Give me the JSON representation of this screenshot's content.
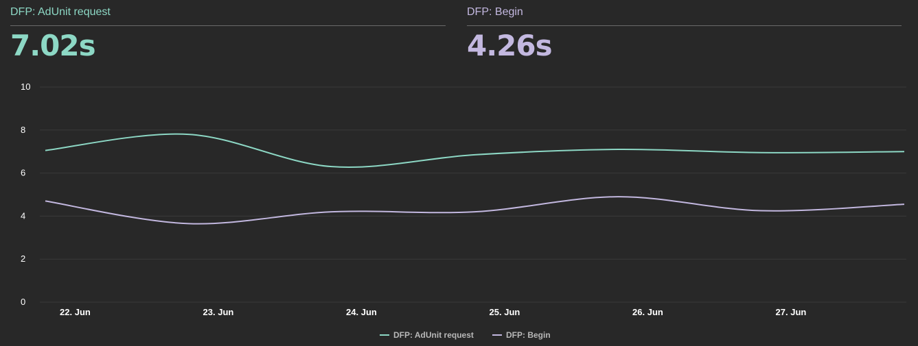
{
  "metrics": [
    {
      "label": "DFP: AdUnit request",
      "value": "7.02s",
      "color": "#8dd8c5"
    },
    {
      "label": "DFP: Begin",
      "value": "4.26s",
      "color": "#c3b8e0"
    }
  ],
  "chart_data": {
    "type": "line",
    "title": "",
    "xlabel": "",
    "ylabel": "",
    "x": [
      "2023-06-21T19:00",
      "2023-06-22T19:00",
      "2023-06-23T19:00",
      "2023-06-24T19:00",
      "2023-06-25T19:00",
      "2023-06-26T19:00",
      "2023-06-27T19:00"
    ],
    "x_ticks": [
      "22. Jun",
      "23. Jun",
      "24. Jun",
      "25. Jun",
      "26. Jun",
      "27. Jun"
    ],
    "ylim": [
      0,
      10
    ],
    "y_ticks": [
      0,
      2,
      4,
      6,
      8,
      10
    ],
    "grid": true,
    "legend": "bottom",
    "series": [
      {
        "name": "DFP: AdUnit request",
        "color": "#8dd8c5",
        "values": [
          7.05,
          7.8,
          6.3,
          6.85,
          7.1,
          6.95,
          7.0
        ]
      },
      {
        "name": "DFP: Begin",
        "color": "#c3b8e0",
        "values": [
          4.7,
          3.65,
          4.2,
          4.2,
          4.9,
          4.25,
          4.55
        ]
      }
    ]
  }
}
